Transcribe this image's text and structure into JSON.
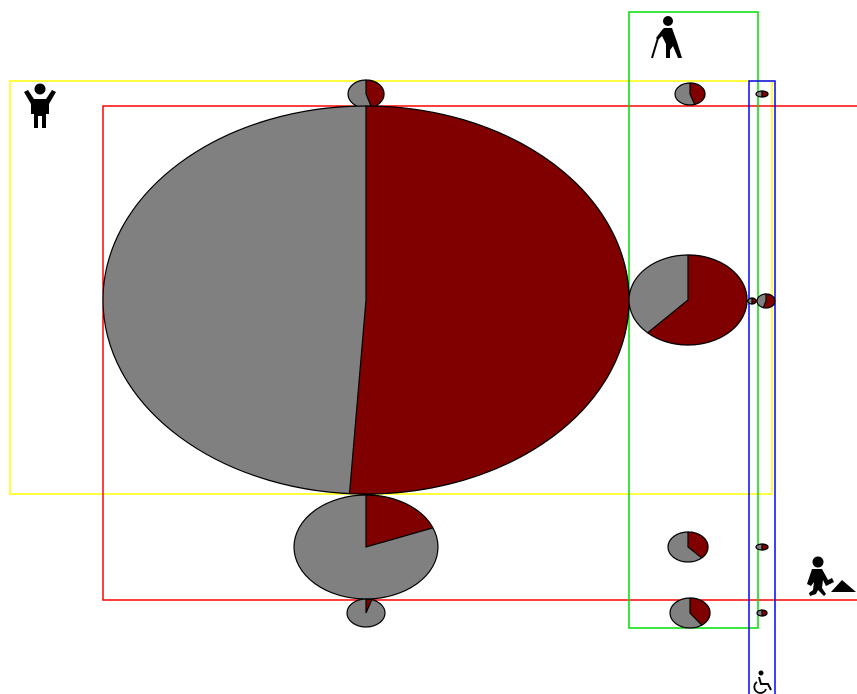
{
  "colors": {
    "pie_primary": "#800000",
    "pie_secondary": "#808080",
    "children_set": "#ffff00",
    "workers_set": "#ff0000",
    "elderly_set": "#00dd00",
    "disabled_set": "#0000ff",
    "pie_outline": "#000000"
  },
  "sets": [
    {
      "key": "children",
      "icon": "child-icon"
    },
    {
      "key": "workers",
      "icon": "worker-icon"
    },
    {
      "key": "elderly",
      "icon": "elderly-icon"
    },
    {
      "key": "disabled",
      "icon": "wheelchair-icon"
    }
  ],
  "pies": [
    {
      "key": "children-only",
      "fraction_primary": 0.45
    },
    {
      "key": "children-elderly",
      "fraction_primary": 0.45
    },
    {
      "key": "children-elderly-disabled",
      "fraction_primary": 0.5
    },
    {
      "key": "children-workers",
      "fraction_primary": 0.51
    },
    {
      "key": "children-workers-elderly",
      "fraction_primary": 0.62
    },
    {
      "key": "children-workers-elderly-disabled",
      "fraction_primary": 0.55
    },
    {
      "key": "children-workers-elderly-disabled-minor",
      "fraction_primary": 0.5
    },
    {
      "key": "workers-only",
      "fraction_primary": 0.19
    },
    {
      "key": "workers-elderly",
      "fraction_primary": 0.38
    },
    {
      "key": "workers-elderly-disabled",
      "fraction_primary": 0.5
    },
    {
      "key": "none",
      "fraction_primary": 0.05
    },
    {
      "key": "elderly-only",
      "fraction_primary": 0.4
    },
    {
      "key": "elderly-disabled",
      "fraction_primary": 0.5
    }
  ]
}
